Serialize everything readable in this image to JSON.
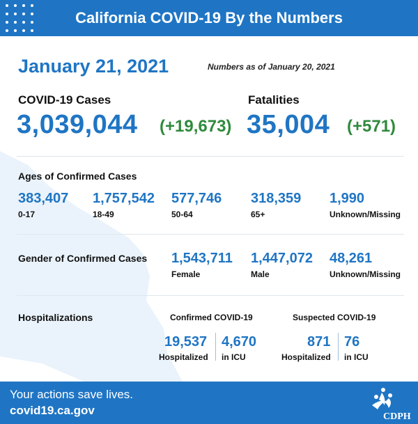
{
  "header": {
    "title": "California COVID-19 By the Numbers"
  },
  "date": "January 21, 2021",
  "as_of": "Numbers as of January 20, 2021",
  "cases": {
    "label": "COVID-19 Cases",
    "total": "3,039,044",
    "change": "(+19,673)"
  },
  "fatalities": {
    "label": "Fatalities",
    "total": "35,004",
    "change": "(+571)"
  },
  "ages": {
    "title": "Ages of Confirmed Cases",
    "groups": [
      {
        "value": "383,407",
        "label": "0-17"
      },
      {
        "value": "1,757,542",
        "label": "18-49"
      },
      {
        "value": "577,746",
        "label": "50-64"
      },
      {
        "value": "318,359",
        "label": "65+"
      },
      {
        "value": "1,990",
        "label": "Unknown/Missing"
      }
    ]
  },
  "gender": {
    "title": "Gender of Confirmed Cases",
    "groups": [
      {
        "value": "1,543,711",
        "label": "Female"
      },
      {
        "value": "1,447,072",
        "label": "Male"
      },
      {
        "value": "48,261",
        "label": "Unknown/Missing"
      }
    ]
  },
  "hospitalizations": {
    "title": "Hospitalizations",
    "confirmed": {
      "heading": "Confirmed COVID-19",
      "hospitalized": "19,537",
      "hospitalized_label": "Hospitalized",
      "icu": "4,670",
      "icu_label": "in ICU"
    },
    "suspected": {
      "heading": "Suspected COVID-19",
      "hospitalized": "871",
      "hospitalized_label": "Hospitalized",
      "icu": "76",
      "icu_label": "in ICU"
    }
  },
  "footer": {
    "tagline": "Your actions save lives.",
    "url": "covid19.ca.gov"
  },
  "logo": {
    "text": "CDPH",
    "icon": "cdph-logo-icon"
  },
  "colors": {
    "brand_blue": "#1f75c4",
    "change_green": "#2f8a3c",
    "map_tint": "#eaf3fb"
  }
}
